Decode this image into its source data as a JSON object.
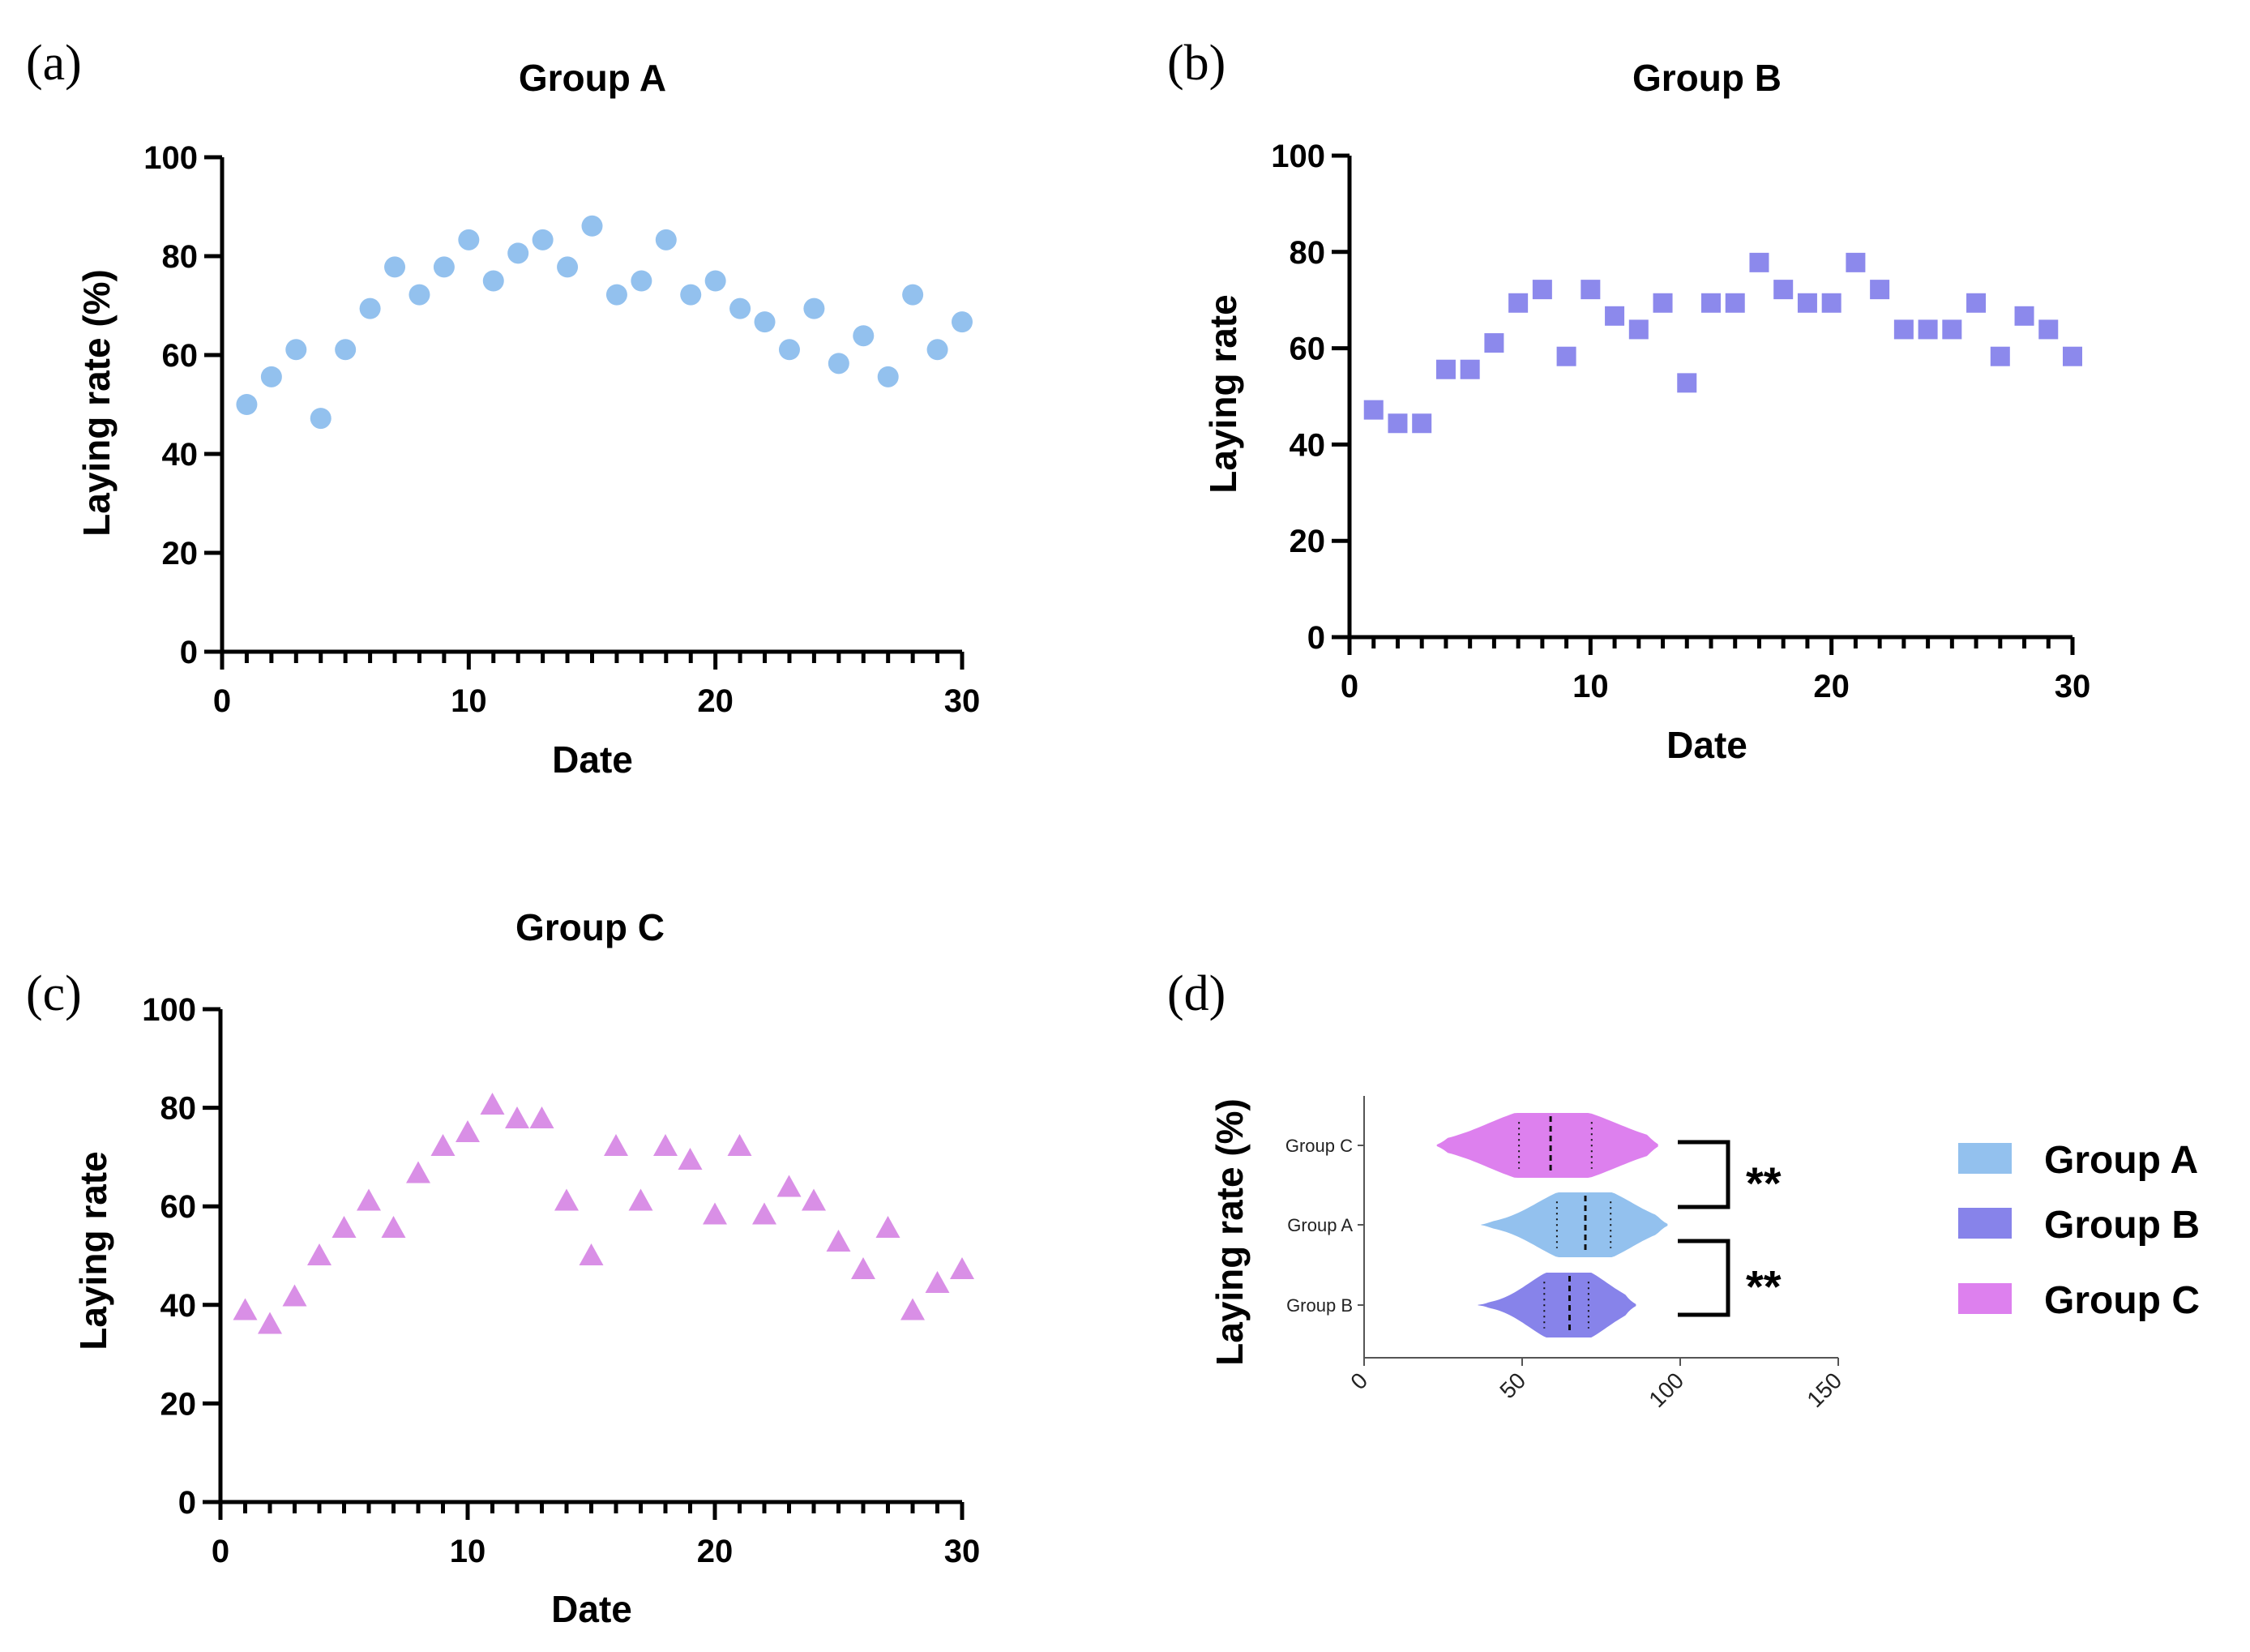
{
  "chart_data": [
    {
      "panel": "(a)",
      "type": "scatter",
      "title": "Group A",
      "xlabel": "Date",
      "ylabel": "Laying rate (%)",
      "xlim": [
        0,
        30
      ],
      "ylim": [
        0,
        100
      ],
      "xticks": [
        0,
        10,
        20,
        30
      ],
      "yticks": [
        0,
        20,
        40,
        60,
        80,
        100
      ],
      "marker": "circle",
      "color": "#93c1ee",
      "x": [
        1,
        2,
        3,
        4,
        5,
        6,
        7,
        8,
        9,
        10,
        11,
        12,
        13,
        14,
        15,
        16,
        17,
        18,
        19,
        20,
        21,
        22,
        23,
        24,
        25,
        26,
        27,
        28,
        29,
        30
      ],
      "y": [
        50,
        55.6,
        61.1,
        47.2,
        61.1,
        69.4,
        77.8,
        72.2,
        77.8,
        83.3,
        75,
        80.6,
        83.3,
        77.8,
        86.1,
        72.2,
        75,
        83.3,
        72.2,
        75,
        69.4,
        66.7,
        61.1,
        69.4,
        58.3,
        63.9,
        55.6,
        72.2,
        61.1,
        66.7
      ]
    },
    {
      "panel": "(b)",
      "type": "scatter",
      "title": "Group B",
      "xlabel": "Date",
      "ylabel": "Laying rate",
      "xlim": [
        0,
        30
      ],
      "ylim": [
        0,
        100
      ],
      "xticks": [
        0,
        10,
        20,
        30
      ],
      "yticks": [
        0,
        20,
        40,
        60,
        80,
        100
      ],
      "marker": "square",
      "color": "#8c89ec",
      "x": [
        1,
        2,
        3,
        4,
        5,
        6,
        7,
        8,
        9,
        10,
        11,
        12,
        13,
        14,
        15,
        16,
        17,
        18,
        19,
        20,
        21,
        22,
        23,
        24,
        25,
        26,
        27,
        28,
        29,
        30
      ],
      "y": [
        47.2,
        44.4,
        44.4,
        55.6,
        55.6,
        61.1,
        69.4,
        72.2,
        58.3,
        72.2,
        66.7,
        63.9,
        69.4,
        52.8,
        69.4,
        69.4,
        77.8,
        72.2,
        69.4,
        69.4,
        77.8,
        72.2,
        63.9,
        63.9,
        63.9,
        69.4,
        58.3,
        66.7,
        63.9,
        58.3
      ]
    },
    {
      "panel": "(c)",
      "type": "scatter",
      "title": "Group C",
      "xlabel": "Date",
      "ylabel": "Laying rate",
      "xlim": [
        0,
        30
      ],
      "ylim": [
        0,
        100
      ],
      "xticks": [
        0,
        10,
        20,
        30
      ],
      "yticks": [
        0,
        20,
        40,
        60,
        80,
        100
      ],
      "marker": "triangle",
      "color": "#d98fe6",
      "x": [
        1,
        2,
        3,
        4,
        5,
        6,
        7,
        8,
        9,
        10,
        11,
        12,
        13,
        14,
        15,
        16,
        17,
        18,
        19,
        20,
        21,
        22,
        23,
        24,
        25,
        26,
        27,
        28,
        29,
        30
      ],
      "y": [
        38.9,
        36.1,
        41.7,
        50,
        55.6,
        61.1,
        55.6,
        66.7,
        72.2,
        75,
        80.6,
        77.8,
        77.8,
        61.1,
        50,
        72.2,
        61.1,
        72.2,
        69.4,
        58.3,
        72.2,
        58.3,
        63.9,
        61.1,
        52.8,
        47.2,
        55.6,
        38.9,
        44.4,
        47.2
      ]
    },
    {
      "panel": "(d)",
      "type": "violin",
      "ylabel": "Laying rate (%)",
      "xlim": [
        0,
        150
      ],
      "xticks": [
        0,
        50,
        100,
        150
      ],
      "categories": [
        "Group C",
        "Group A",
        "Group B"
      ],
      "series": [
        {
          "name": "Group C",
          "color": "#dd80ee",
          "min": 23,
          "q1": 49,
          "median": 59,
          "q3": 72,
          "max": 93
        },
        {
          "name": "Group A",
          "color": "#93c1ee",
          "min": 37,
          "q1": 61,
          "median": 70,
          "q3": 78,
          "max": 96
        },
        {
          "name": "Group B",
          "color": "#8783ea",
          "min": 36,
          "q1": 57,
          "median": 65,
          "q3": 71,
          "max": 86
        }
      ],
      "significance": [
        {
          "between": [
            "Group C",
            "Group A"
          ],
          "label": "**"
        },
        {
          "between": [
            "Group A",
            "Group B"
          ],
          "label": "**"
        }
      ],
      "legend": [
        {
          "name": "Group A",
          "color": "#93c1ee"
        },
        {
          "name": "Group B",
          "color": "#8783ea"
        },
        {
          "name": "Group C",
          "color": "#dd80ee"
        }
      ]
    }
  ]
}
